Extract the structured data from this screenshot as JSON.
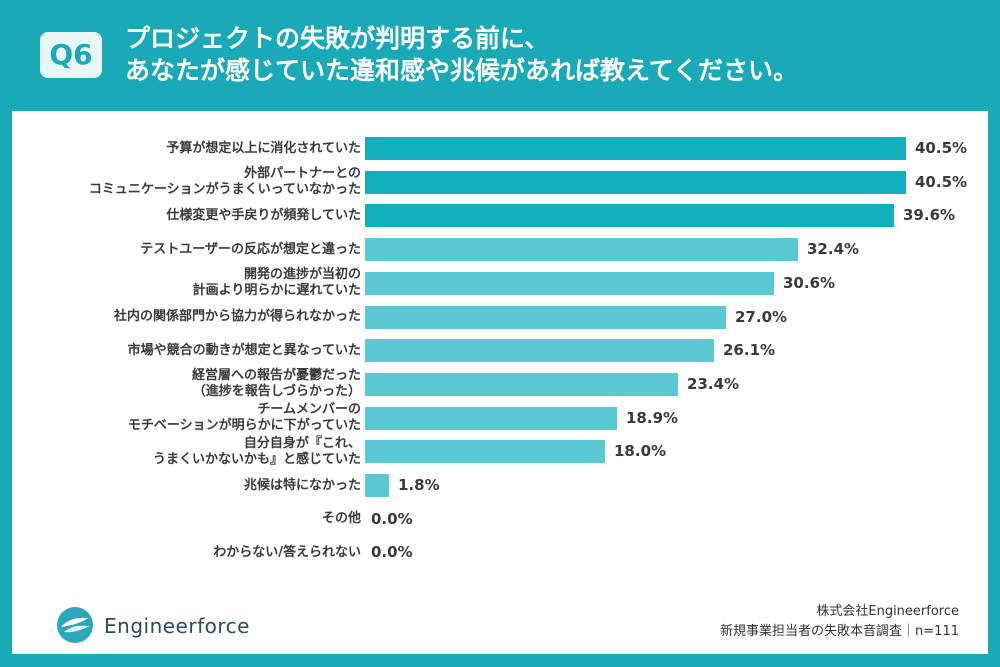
{
  "header": {
    "badge": "Q6",
    "title_line1": "プロジェクトの失敗が判明する前に、",
    "title_line2": "あなたが感じていた違和感や兆候があれば教えてください。"
  },
  "footer": {
    "brand": "Engineerforce",
    "company": "株式会社Engineerforce",
    "survey": "新規事業担当者の失敗本音調査｜n=111"
  },
  "colors": {
    "background": "#1aa9b7",
    "bar_dark": "#13aebb",
    "bar_light": "#5ac9d4",
    "text": "#3a3a3a"
  },
  "chart_data": {
    "type": "bar",
    "orientation": "horizontal",
    "categories": [
      "予算が想定以上に消化されていた",
      "外部パートナーとの\nコミュニケーションがうまくいっていなかった",
      "仕様変更や手戻りが頻発していた",
      "テストユーザーの反応が想定と違った",
      "開発の進捗が当初の\n計画より明らかに遅れていた",
      "社内の関係部門から協力が得られなかった",
      "市場や競合の動きが想定と異なっていた",
      "経営層への報告が憂鬱だった\n（進捗を報告しづらかった）",
      "チームメンバーの\nモチベーションが明らかに下がっていた",
      "自分自身が『これ、\nうまくいかないかも』と感じていた",
      "兆候は特になかった",
      "その他",
      "わからない/答えられない"
    ],
    "values": [
      40.5,
      40.5,
      39.6,
      32.4,
      30.6,
      27.0,
      26.1,
      23.4,
      18.9,
      18.0,
      1.8,
      0.0,
      0.0
    ],
    "value_labels": [
      "40.5%",
      "40.5%",
      "39.6%",
      "32.4%",
      "30.6%",
      "27.0%",
      "26.1%",
      "23.4%",
      "18.9%",
      "18.0%",
      "1.8%",
      "0.0%",
      "0.0%"
    ],
    "unit": "%",
    "xlim": [
      0,
      40.5
    ]
  }
}
